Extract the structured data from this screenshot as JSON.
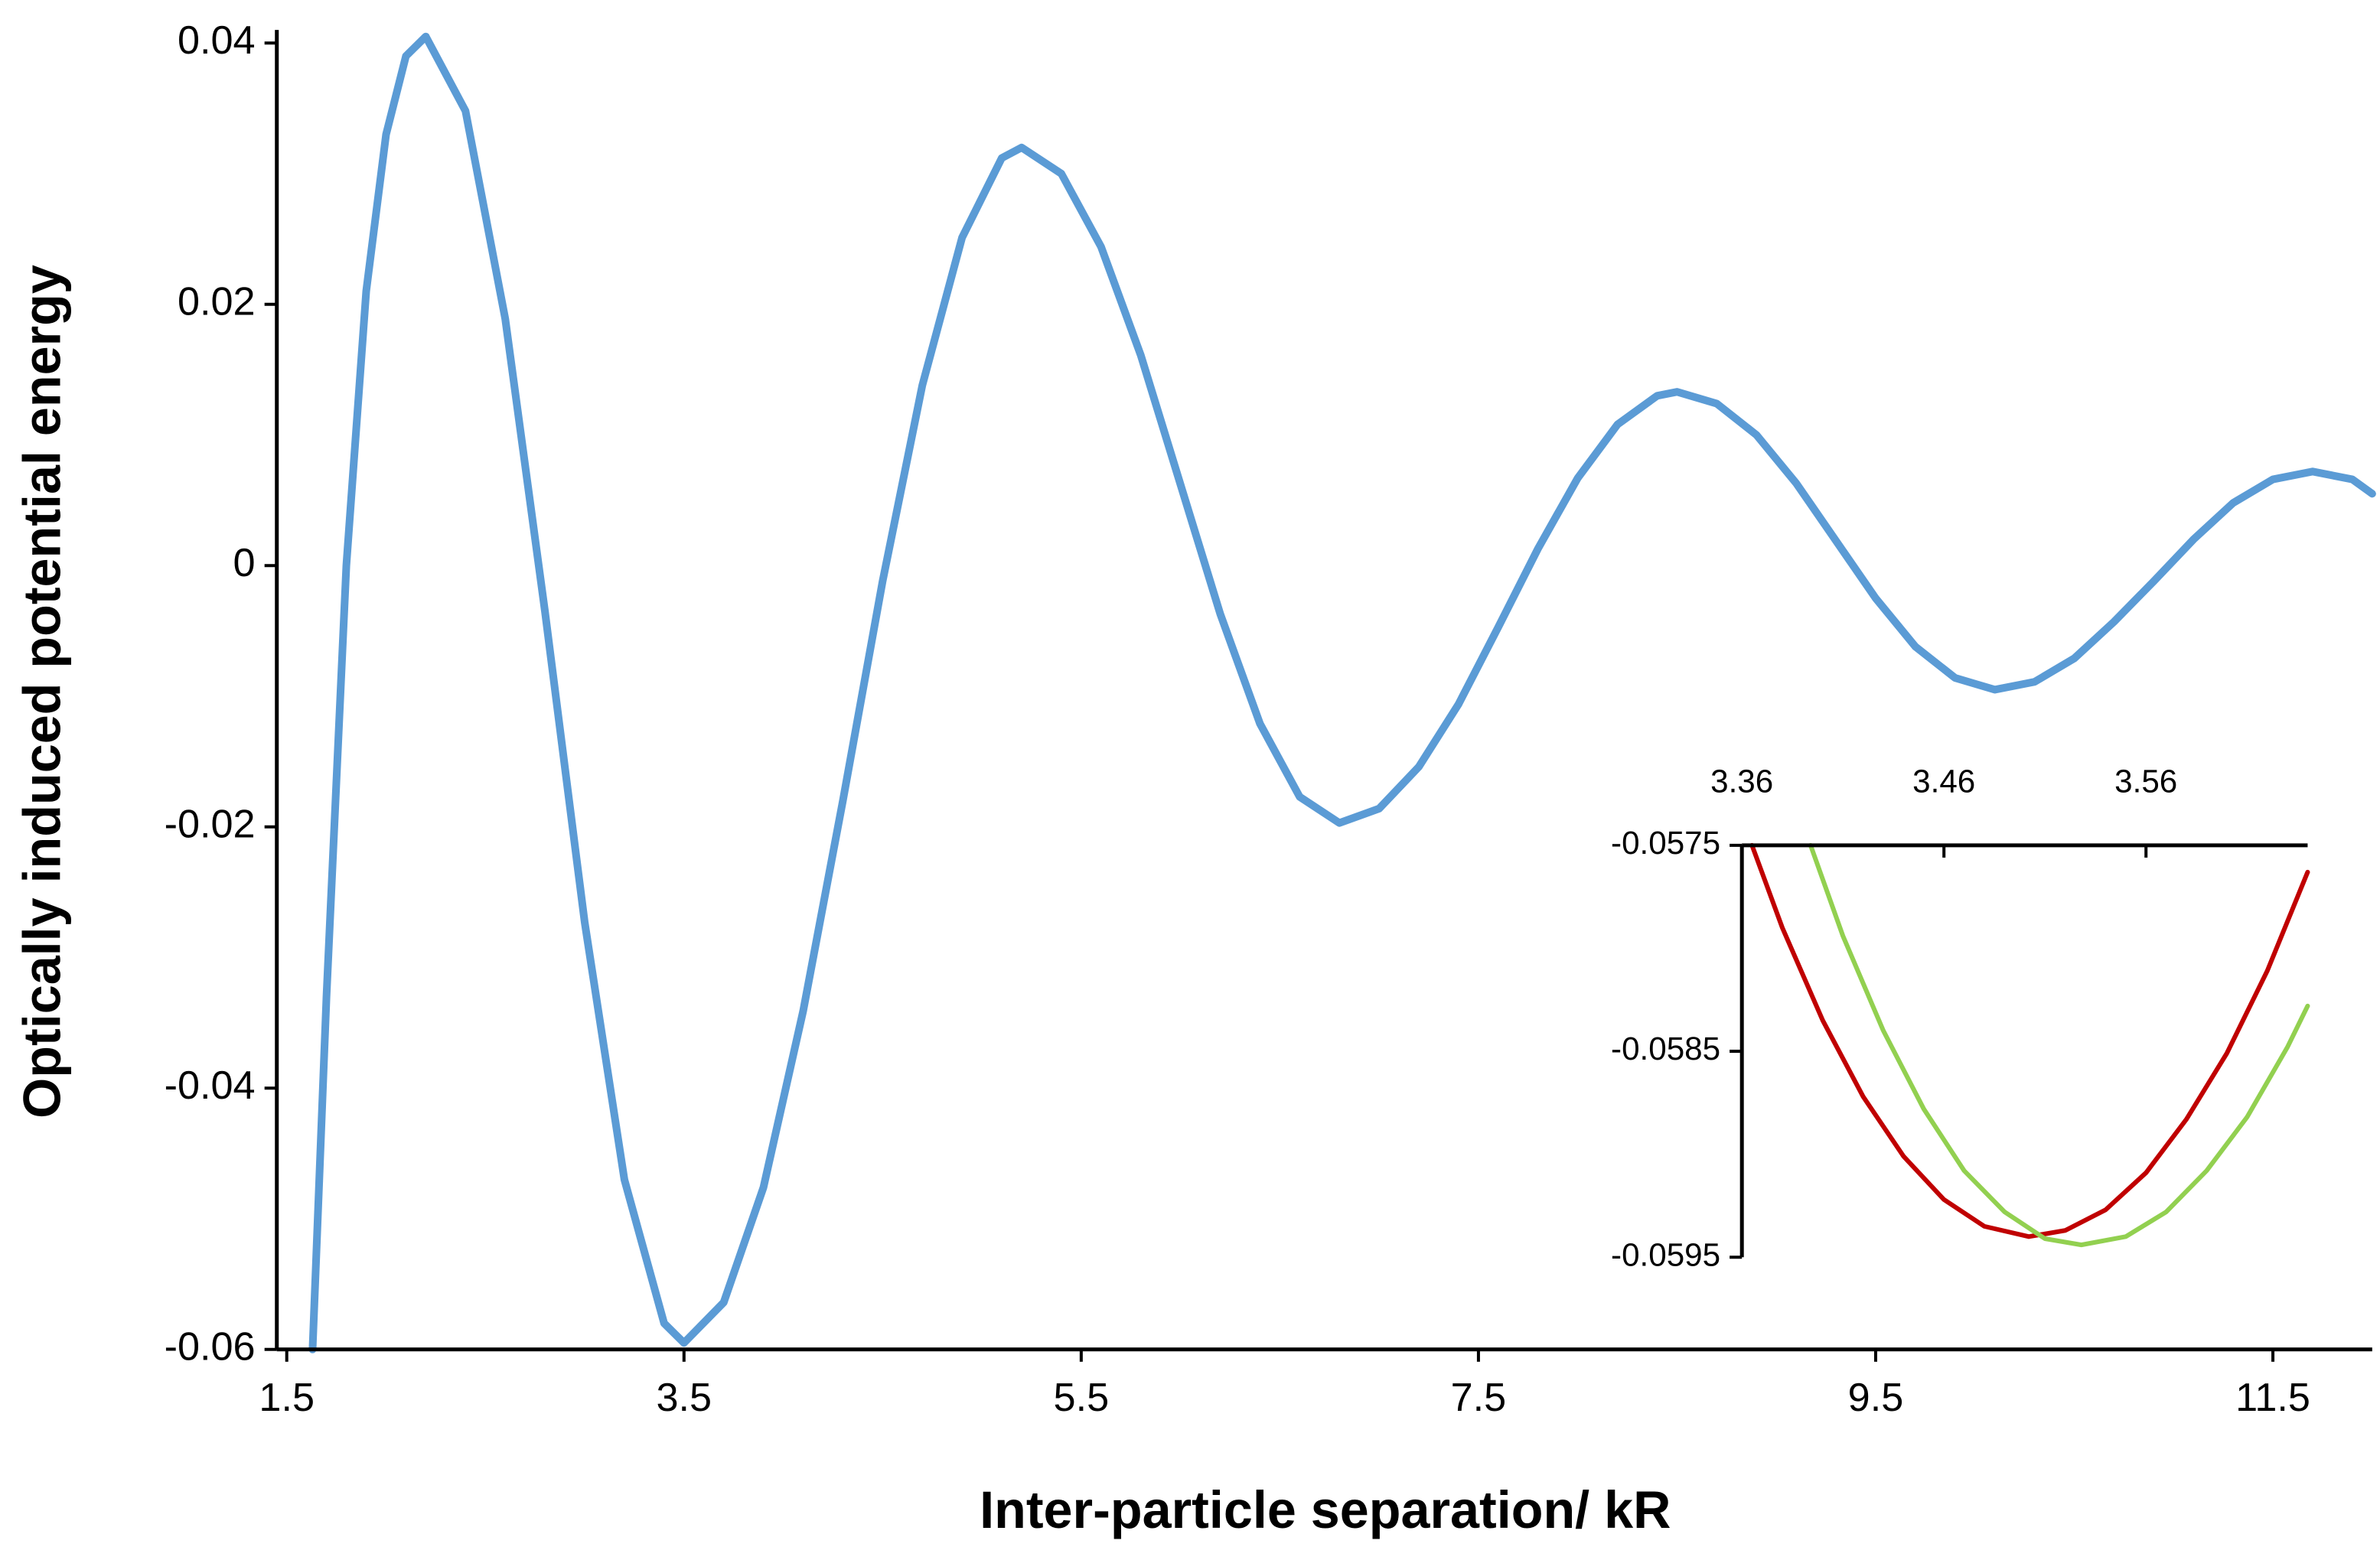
{
  "chart_data": [
    {
      "type": "line",
      "xlabel": "Inter-particle separation/ kR",
      "ylabel": "Optically induced potential energy",
      "xlim": [
        1.45,
        12.0
      ],
      "ylim": [
        -0.06,
        0.041
      ],
      "xticks": [
        1.5,
        3.5,
        5.5,
        7.5,
        9.5,
        11.5
      ],
      "yticks": [
        -0.06,
        -0.04,
        -0.02,
        0,
        0.02,
        0.04
      ],
      "series": [
        {
          "color": "#5b9bd5",
          "x": [
            1.63,
            1.7,
            1.8,
            1.9,
            2.0,
            2.1,
            2.2,
            2.4,
            2.6,
            2.8,
            3.0,
            3.2,
            3.4,
            3.5,
            3.7,
            3.9,
            4.1,
            4.3,
            4.5,
            4.7,
            4.9,
            5.1,
            5.2,
            5.4,
            5.6,
            5.8,
            6.0,
            6.2,
            6.4,
            6.6,
            6.8,
            7.0,
            7.2,
            7.4,
            7.6,
            7.8,
            8.0,
            8.2,
            8.4,
            8.5,
            8.7,
            8.9,
            9.1,
            9.3,
            9.5,
            9.7,
            9.9,
            10.1,
            10.3,
            10.5,
            10.7,
            10.9,
            11.1,
            11.3,
            11.5,
            11.7,
            11.9,
            12.0
          ],
          "values": [
            -0.06,
            -0.033,
            0.0,
            0.021,
            0.033,
            0.039,
            0.0405,
            0.0348,
            0.0189,
            -0.0035,
            -0.0273,
            -0.047,
            -0.058,
            -0.0595,
            -0.0564,
            -0.0476,
            -0.0341,
            -0.018,
            -0.0012,
            0.0138,
            0.0251,
            0.0312,
            0.032,
            0.03,
            0.0244,
            0.0161,
            0.0062,
            -0.0037,
            -0.0121,
            -0.0177,
            -0.0197,
            -0.0186,
            -0.0154,
            -0.0106,
            -0.0047,
            0.0013,
            0.0067,
            0.0108,
            0.013,
            0.0133,
            0.0124,
            0.01,
            0.0063,
            0.0019,
            -0.0025,
            -0.0062,
            -0.0086,
            -0.0095,
            -0.0089,
            -0.0071,
            -0.0043,
            -0.0012,
            0.002,
            0.0048,
            0.0066,
            0.0072,
            0.0066,
            0.0055
          ]
        }
      ]
    },
    {
      "type": "line",
      "xlim": [
        3.36,
        3.64
      ],
      "ylim": [
        -0.0595,
        -0.0575
      ],
      "xticks": [
        3.36,
        3.46,
        3.56
      ],
      "yticks": [
        -0.0575,
        -0.0585,
        -0.0595
      ],
      "series": [
        {
          "color": "#c00000",
          "x": [
            3.365,
            3.38,
            3.4,
            3.42,
            3.44,
            3.46,
            3.48,
            3.502,
            3.52,
            3.54,
            3.56,
            3.58,
            3.6,
            3.62,
            3.64
          ],
          "values": [
            -0.0575,
            -0.0579,
            -0.05835,
            -0.05872,
            -0.05901,
            -0.05922,
            -0.05935,
            -0.0594,
            -0.05937,
            -0.05927,
            -0.05909,
            -0.05883,
            -0.05851,
            -0.05811,
            -0.05763
          ]
        },
        {
          "color": "#92d050",
          "x": [
            3.394,
            3.41,
            3.43,
            3.45,
            3.47,
            3.49,
            3.51,
            3.528,
            3.55,
            3.57,
            3.59,
            3.61,
            3.63,
            3.64
          ],
          "values": [
            -0.0575,
            -0.05794,
            -0.0584,
            -0.05878,
            -0.05908,
            -0.05928,
            -0.05941,
            -0.05944,
            -0.0594,
            -0.05928,
            -0.05908,
            -0.05882,
            -0.05848,
            -0.05828
          ]
        }
      ]
    }
  ]
}
